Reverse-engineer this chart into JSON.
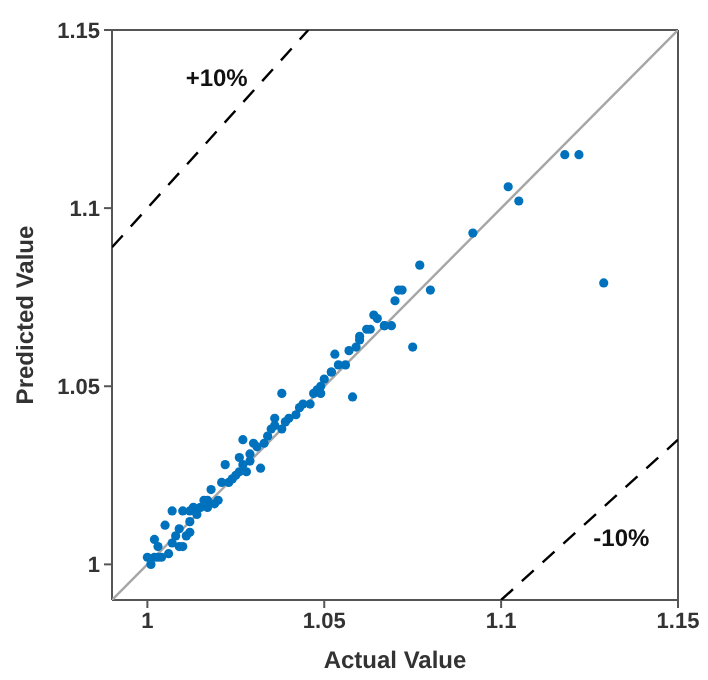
{
  "chart_data": {
    "type": "scatter",
    "xlabel": "Actual Value",
    "ylabel": "Predicted Value",
    "xlim": [
      0.99,
      1.15
    ],
    "ylim": [
      0.99,
      1.15
    ],
    "xticks": [
      1,
      1.05,
      1.1,
      1.15
    ],
    "yticks": [
      1,
      1.05,
      1.1,
      1.15
    ],
    "grid": false,
    "marker": "circle",
    "annotations": [
      "+10%",
      "-10%"
    ],
    "series": [
      {
        "type": "line",
        "color": "#a6a6a6",
        "line_style": "solid",
        "marker": "none",
        "x": [
          0.99,
          1.15
        ],
        "values": [
          0.99,
          1.15
        ]
      },
      {
        "type": "line",
        "color": "#000000",
        "line_style": "dashed",
        "marker": "none",
        "x": [
          0.99,
          1.0455
        ],
        "values": [
          1.089,
          1.15
        ]
      },
      {
        "type": "line",
        "color": "#000000",
        "line_style": "dashed",
        "marker": "none",
        "x": [
          1.1,
          1.15
        ],
        "values": [
          0.99,
          1.035
        ]
      },
      {
        "color": "#0072bd",
        "x": [
          1.0,
          1.001,
          1.002,
          1.002,
          1.003,
          1.003,
          1.004,
          1.005,
          1.006,
          1.007,
          1.007,
          1.008,
          1.009,
          1.009,
          1.01,
          1.01,
          1.011,
          1.012,
          1.012,
          1.012,
          1.013,
          1.014,
          1.015,
          1.016,
          1.017,
          1.017,
          1.018,
          1.019,
          1.02,
          1.021,
          1.022,
          1.023,
          1.024,
          1.025,
          1.026,
          1.026,
          1.027,
          1.027,
          1.028,
          1.029,
          1.029,
          1.03,
          1.031,
          1.032,
          1.033,
          1.034,
          1.035,
          1.036,
          1.036,
          1.038,
          1.038,
          1.039,
          1.04,
          1.042,
          1.043,
          1.044,
          1.046,
          1.047,
          1.048,
          1.049,
          1.049,
          1.05,
          1.052,
          1.052,
          1.053,
          1.054,
          1.056,
          1.057,
          1.058,
          1.059,
          1.06,
          1.06,
          1.062,
          1.063,
          1.064,
          1.065,
          1.067,
          1.067,
          1.069,
          1.07,
          1.071,
          1.072,
          1.075,
          1.077,
          1.08,
          1.092,
          1.102,
          1.105,
          1.118,
          1.122,
          1.129
        ],
        "values": [
          1.002,
          1.0,
          1.002,
          1.007,
          1.005,
          1.002,
          1.002,
          1.011,
          1.003,
          1.006,
          1.015,
          1.008,
          1.005,
          1.01,
          1.005,
          1.015,
          1.008,
          1.009,
          1.012,
          1.015,
          1.016,
          1.014,
          1.016,
          1.018,
          1.018,
          1.016,
          1.021,
          1.017,
          1.018,
          1.023,
          1.028,
          1.023,
          1.024,
          1.025,
          1.026,
          1.03,
          1.035,
          1.028,
          1.026,
          1.029,
          1.031,
          1.034,
          1.033,
          1.027,
          1.034,
          1.036,
          1.038,
          1.039,
          1.041,
          1.038,
          1.048,
          1.04,
          1.041,
          1.042,
          1.044,
          1.045,
          1.045,
          1.048,
          1.049,
          1.048,
          1.05,
          1.052,
          1.054,
          1.054,
          1.059,
          1.056,
          1.056,
          1.06,
          1.047,
          1.061,
          1.063,
          1.064,
          1.066,
          1.066,
          1.07,
          1.069,
          1.067,
          1.067,
          1.067,
          1.074,
          1.077,
          1.077,
          1.061,
          1.084,
          1.077,
          1.093,
          1.106,
          1.102,
          1.115,
          1.115,
          1.079
        ]
      }
    ]
  }
}
